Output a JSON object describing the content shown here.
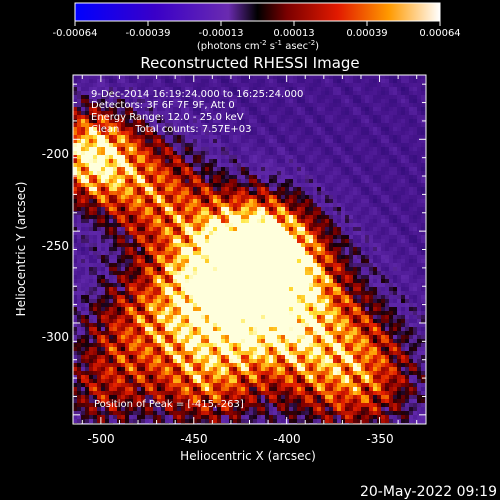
{
  "colorbar": {
    "ticks": [
      "-0.00064",
      "-0.00039",
      "-0.00013",
      "0.00013",
      "0.00039",
      "0.00064"
    ],
    "unit_label_a": "(photons cm",
    "unit_label_b": "s",
    "unit_label_c": "asec",
    "unit_label_d": ")",
    "sup_1": "-2",
    "sup_2": "-1",
    "sup_3": "-2",
    "range": [
      -0.00064,
      0.00064
    ]
  },
  "image": {
    "title": "Reconstructed RHESSI Image",
    "annotations": [
      "9-Dec-2014 16:19:24.000 to 16:25:24.000",
      "Detectors: 3F 6F 7F 9F, Att 0",
      "Energy Range: 12.0 - 25.0 keV",
      "Clean     Total counts: 7.57E+03"
    ],
    "peak_label": "Position of Peak = [-415,-263]",
    "peak": [
      -415,
      -263
    ]
  },
  "axes": {
    "xlabel": "Heliocentric X (arcsec)",
    "ylabel": "Heliocentric Y (arcsec)",
    "xlim": [
      -515,
      -325
    ],
    "ylim": [
      -355,
      -165
    ],
    "xticks": [
      "-500",
      "-450",
      "-400",
      "-350"
    ],
    "yticks": [
      "-200",
      "-250",
      "-300"
    ]
  },
  "footer": {
    "timestamp": "20-May-2022 09:19"
  }
}
